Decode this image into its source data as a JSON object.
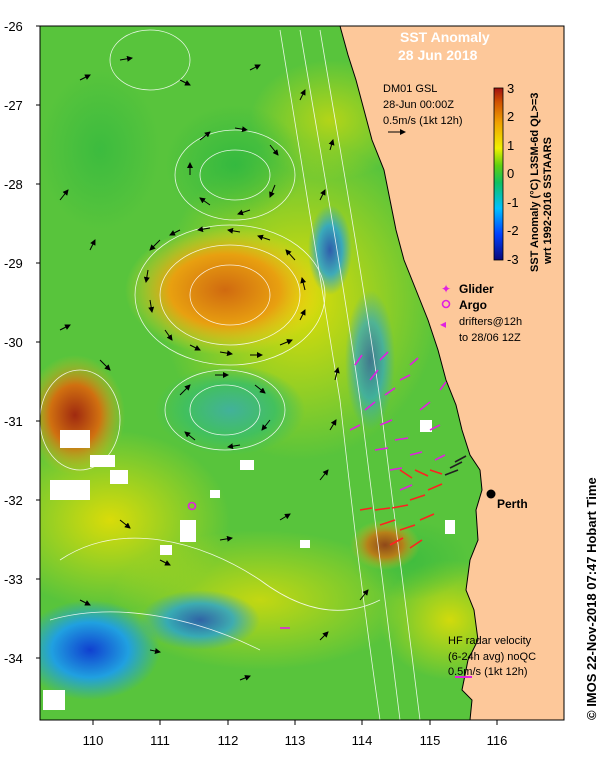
{
  "map": {
    "title_line1": "SST Anomaly",
    "title_line2": "28 Jun 2018",
    "lat_ticks": [
      "-26",
      "-27",
      "-28",
      "-29",
      "-30",
      "-31",
      "-32",
      "-33",
      "-34"
    ],
    "lon_ticks": [
      "110",
      "111",
      "112",
      "113",
      "114",
      "115",
      "116"
    ],
    "city_label": "Perth",
    "copyright": "© IMOS 22-Nov-2018 07:47 Hobart Time"
  },
  "top_annotation": {
    "line1": "DM01 GSL",
    "line2": "28-Jun 00:00Z",
    "line3": "0.5m/s (1kt 12h)"
  },
  "colorbar": {
    "ticks": [
      "3",
      "2",
      "1",
      "0",
      "-1",
      "-2",
      "-3"
    ],
    "label_line1": "SST Anomaly (°C) L3SM-6d QL>=3",
    "label_line2": "wrt 1992-2016 SSTAARS",
    "colors": [
      "#08087a",
      "#0040ff",
      "#00c0ff",
      "#10c060",
      "#60d010",
      "#f0f000",
      "#f0a000",
      "#d05000",
      "#a01010"
    ]
  },
  "legend": {
    "glider": "Glider",
    "argo": "Argo",
    "drifters_line1": "drifters@12h",
    "drifters_line2": "to 28/06 12Z"
  },
  "bottom_annotation": {
    "line1": "HF radar velocity",
    "line2": "(6-24h avg) noQC",
    "line3": "0.5m/s (1kt 12h)"
  },
  "colors": {
    "land": "#fdc89a",
    "warm": "#d07010",
    "neutral": "#50c040",
    "cool": "#20a0e0",
    "marker": "#e020e0"
  }
}
